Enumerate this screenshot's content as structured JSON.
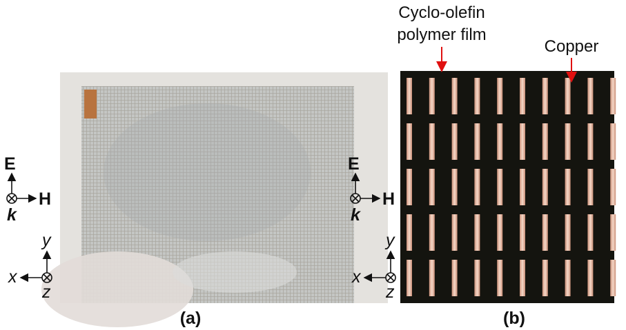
{
  "panel_a": {
    "label": "(a)",
    "field": {
      "E": "E",
      "H": "H",
      "k": "k"
    },
    "axes": {
      "x": "x",
      "y": "y",
      "z": "z"
    }
  },
  "panel_b": {
    "label": "(b)",
    "field": {
      "E": "E",
      "H": "H",
      "k": "k"
    },
    "axes": {
      "x": "x",
      "y": "y",
      "z": "z"
    },
    "annotations": {
      "film": [
        "Cyclo-olefin",
        "polymer film"
      ],
      "copper": "Copper"
    }
  }
}
